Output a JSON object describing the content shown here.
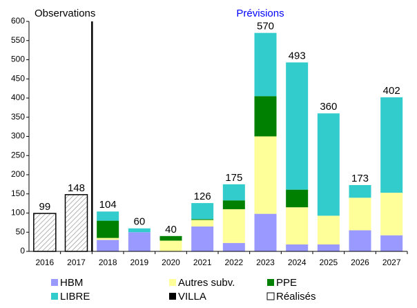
{
  "chart_data": {
    "type": "stacked_bar",
    "annotations": [
      "Observations",
      "Prévisions"
    ],
    "categories": [
      "2016",
      "2017",
      "2018",
      "2019",
      "2020",
      "2021",
      "2022",
      "2023",
      "2024",
      "2025",
      "2026",
      "2027"
    ],
    "series": [
      {
        "name": "HBM",
        "color": "#9999ff",
        "values": [
          null,
          null,
          30,
          50,
          null,
          65,
          22,
          98,
          18,
          18,
          55,
          42
        ]
      },
      {
        "name": "Autres subv.",
        "color": "#ffff99",
        "values": [
          null,
          null,
          5,
          null,
          28,
          17,
          88,
          202,
          97,
          75,
          85,
          111
        ]
      },
      {
        "name": "PPE",
        "color": "#008000",
        "values": [
          null,
          null,
          45,
          null,
          12,
          2,
          23,
          105,
          46,
          null,
          null,
          null
        ]
      },
      {
        "name": "LIBRE",
        "color": "#33cccc",
        "values": [
          null,
          null,
          24,
          10,
          null,
          42,
          42,
          165,
          332,
          267,
          33,
          249
        ]
      },
      {
        "name": "VILLA",
        "color": "#000000",
        "values": [
          null,
          null,
          null,
          null,
          null,
          null,
          null,
          null,
          null,
          null,
          null,
          null
        ]
      },
      {
        "name": "Réalisés",
        "color": "#ffffff",
        "hatch": true,
        "values": [
          99,
          148,
          null,
          null,
          null,
          null,
          null,
          null,
          null,
          null,
          null,
          null
        ]
      }
    ],
    "totals": [
      99,
      148,
      104,
      60,
      40,
      126,
      175,
      570,
      493,
      360,
      173,
      402
    ],
    "ylim": [
      0,
      600
    ],
    "yticks": [
      0,
      50,
      100,
      150,
      200,
      250,
      300,
      350,
      400,
      450,
      500,
      550,
      600
    ],
    "grid": false
  }
}
